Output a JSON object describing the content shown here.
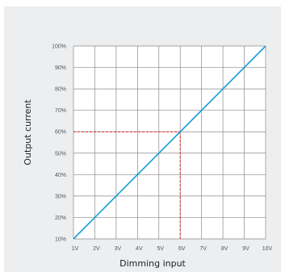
{
  "colors": {
    "panel_background": "#eceef0",
    "plot_background": "#ffffff",
    "grid": "#8a8a8a",
    "series_line": "#1a9dd9",
    "guide_line": "#e02020"
  },
  "chart_data": {
    "type": "line",
    "title": "",
    "xlabel": "Dimming input",
    "ylabel": "Output current",
    "x_unit": "V",
    "y_unit": "%",
    "xlim": [
      1,
      10
    ],
    "ylim": [
      10,
      100
    ],
    "x_ticks": [
      1,
      2,
      3,
      4,
      5,
      6,
      7,
      8,
      9,
      10
    ],
    "y_ticks": [
      10,
      20,
      30,
      40,
      50,
      60,
      70,
      80,
      90,
      100
    ],
    "x_tick_labels": [
      "1V",
      "2V",
      "3V",
      "4V",
      "5V",
      "6V",
      "7V",
      "8V",
      "9V",
      "10V"
    ],
    "y_tick_labels": [
      "10%",
      "20%",
      "30%",
      "40%",
      "50%",
      "60%",
      "70%",
      "80%",
      "90%",
      "100%"
    ],
    "grid": true,
    "legend": "none",
    "series": [
      {
        "x": [
          1,
          10
        ],
        "y": [
          10,
          100
        ]
      }
    ],
    "annotations": [
      {
        "type": "guide",
        "style": "dashed",
        "x": 6,
        "y": 60
      }
    ]
  }
}
